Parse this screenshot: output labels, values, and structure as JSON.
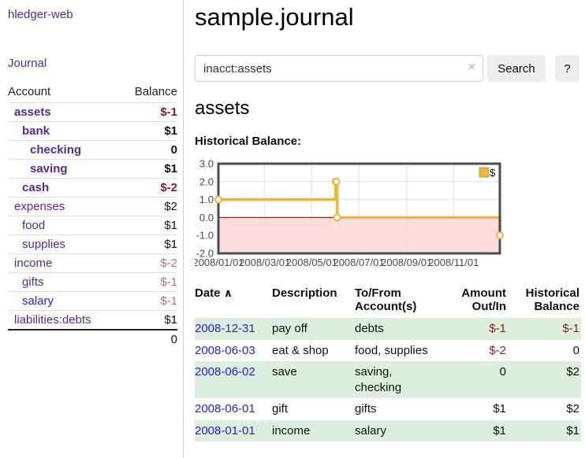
{
  "app": {
    "title": "hledger-web",
    "nav_journal": "Journal"
  },
  "sidebar": {
    "col_account": "Account",
    "col_balance": "Balance",
    "rows": [
      {
        "account": "assets",
        "balance": "$-1"
      },
      {
        "account": "bank",
        "balance": "$1"
      },
      {
        "account": "checking",
        "balance": "0"
      },
      {
        "account": "saving",
        "balance": "$1"
      },
      {
        "account": "cash",
        "balance": "$-2"
      },
      {
        "account": "expenses",
        "balance": "$2"
      },
      {
        "account": "food",
        "balance": "$1"
      },
      {
        "account": "supplies",
        "balance": "$1"
      },
      {
        "account": "income",
        "balance": "$-2"
      },
      {
        "account": "gifts",
        "balance": "$-1"
      },
      {
        "account": "salary",
        "balance": "$-1"
      },
      {
        "account": "liabilities:debts",
        "balance": "$1"
      }
    ],
    "total": "0"
  },
  "header": {
    "title": "sample.journal"
  },
  "search": {
    "query": "inacct:assets",
    "clear_icon": "×",
    "button": "Search",
    "help_button": "?"
  },
  "main": {
    "heading": "assets",
    "chart_label": "Historical Balance:"
  },
  "chart_data": {
    "type": "line",
    "title": "Historical Balance",
    "series": [
      {
        "name": "$",
        "step": true,
        "points": [
          [
            "2008-01-01",
            1
          ],
          [
            "2008-06-01",
            2
          ],
          [
            "2008-06-02",
            2
          ],
          [
            "2008-06-03",
            0
          ],
          [
            "2008-12-31",
            -1
          ]
        ]
      }
    ],
    "x_range": [
      "2008-01-01",
      "2008-12-31"
    ],
    "x_ticks": [
      "2008/01/01",
      "2008/03/01",
      "2008/05/01",
      "2008/07/01",
      "2008/09/01",
      "2008/11/01"
    ],
    "y_ticks": [
      "3.0",
      "2.0",
      "1.0",
      "0.0",
      "-1.0",
      "-2.0"
    ],
    "ylim": [
      -2,
      3
    ],
    "legend": "$",
    "legend_position": "top-right",
    "grid": true,
    "line_color": "#e8b73c",
    "marker_fill": "#ffffff",
    "negative_fill": "#fcdcdc",
    "zero_line_color": "#9b2424",
    "border_color": "#4d4d4d",
    "grid_color": "#e2e2e2"
  },
  "register": {
    "columns": [
      "Date",
      "Description",
      "To/From Account(s)",
      "Amount Out/In",
      "Historical Balance"
    ],
    "sort_icon": "∧",
    "rows": [
      {
        "date": "2008-12-31",
        "description": "pay off",
        "accounts": "debts",
        "amount": "$-1",
        "balance": "$-1"
      },
      {
        "date": "2008-06-03",
        "description": "eat & shop",
        "accounts": "food, supplies",
        "amount": "$-2",
        "balance": "0"
      },
      {
        "date": "2008-06-02",
        "description": "save",
        "accounts": "saving,\nchecking",
        "amount": "0",
        "balance": "$2"
      },
      {
        "date": "2008-06-01",
        "description": "gift",
        "accounts": "gifts",
        "amount": "$1",
        "balance": "$2"
      },
      {
        "date": "2008-01-01",
        "description": "income",
        "accounts": "salary",
        "amount": "$1",
        "balance": "$1"
      }
    ]
  }
}
